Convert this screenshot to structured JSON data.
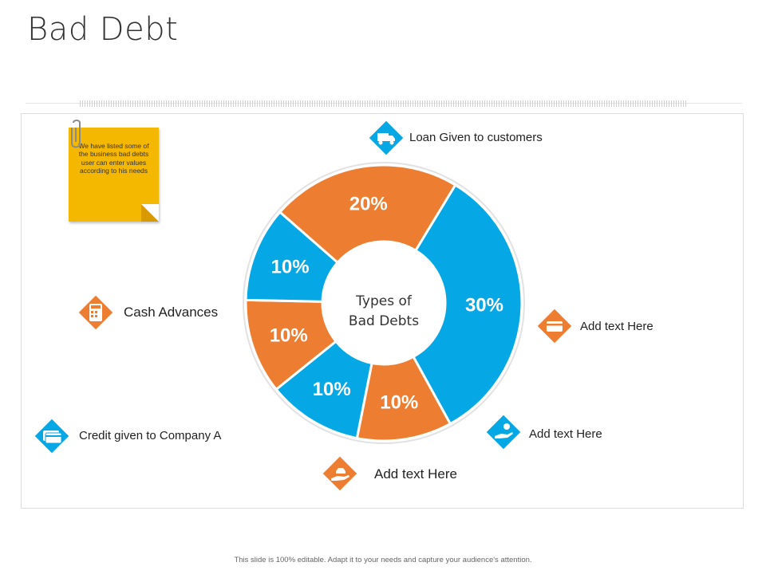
{
  "page": {
    "title": "Bad Debt",
    "footer": "This slide is 100% editable. Adapt it to your needs and capture your audience's attention."
  },
  "note": {
    "text": "We have listed some of the business bad debts user can enter values according to his needs"
  },
  "labels": {
    "loan": "Loan Given to customers",
    "cash": "Cash Advances",
    "credit": "Credit given to Company A",
    "add1": "Add text Here",
    "add2": "Add text Here",
    "add3": "Add text Here"
  },
  "chart_data": {
    "type": "pie",
    "style": "donut",
    "center_label": "Types of Bad Debts",
    "slices": [
      {
        "value": 30,
        "label": "30%",
        "color": "#05a8e5"
      },
      {
        "value": 10,
        "label": "10%",
        "color": "#ed7d31"
      },
      {
        "value": 10,
        "label": "10%",
        "color": "#05a8e5"
      },
      {
        "value": 10,
        "label": "10%",
        "color": "#ed7d31"
      },
      {
        "value": 10,
        "label": "10%",
        "color": "#05a8e5"
      },
      {
        "value": 20,
        "label": "20%",
        "color": "#ed7d31"
      }
    ]
  },
  "colors": {
    "blue": "#05a8e5",
    "orange": "#ed7d31",
    "note": "#f5b800"
  },
  "icons": [
    "truck-icon",
    "card-icon",
    "money-hand-icon",
    "car-hand-icon",
    "credit-card-icon",
    "calculator-icon",
    "paperclip-icon"
  ]
}
